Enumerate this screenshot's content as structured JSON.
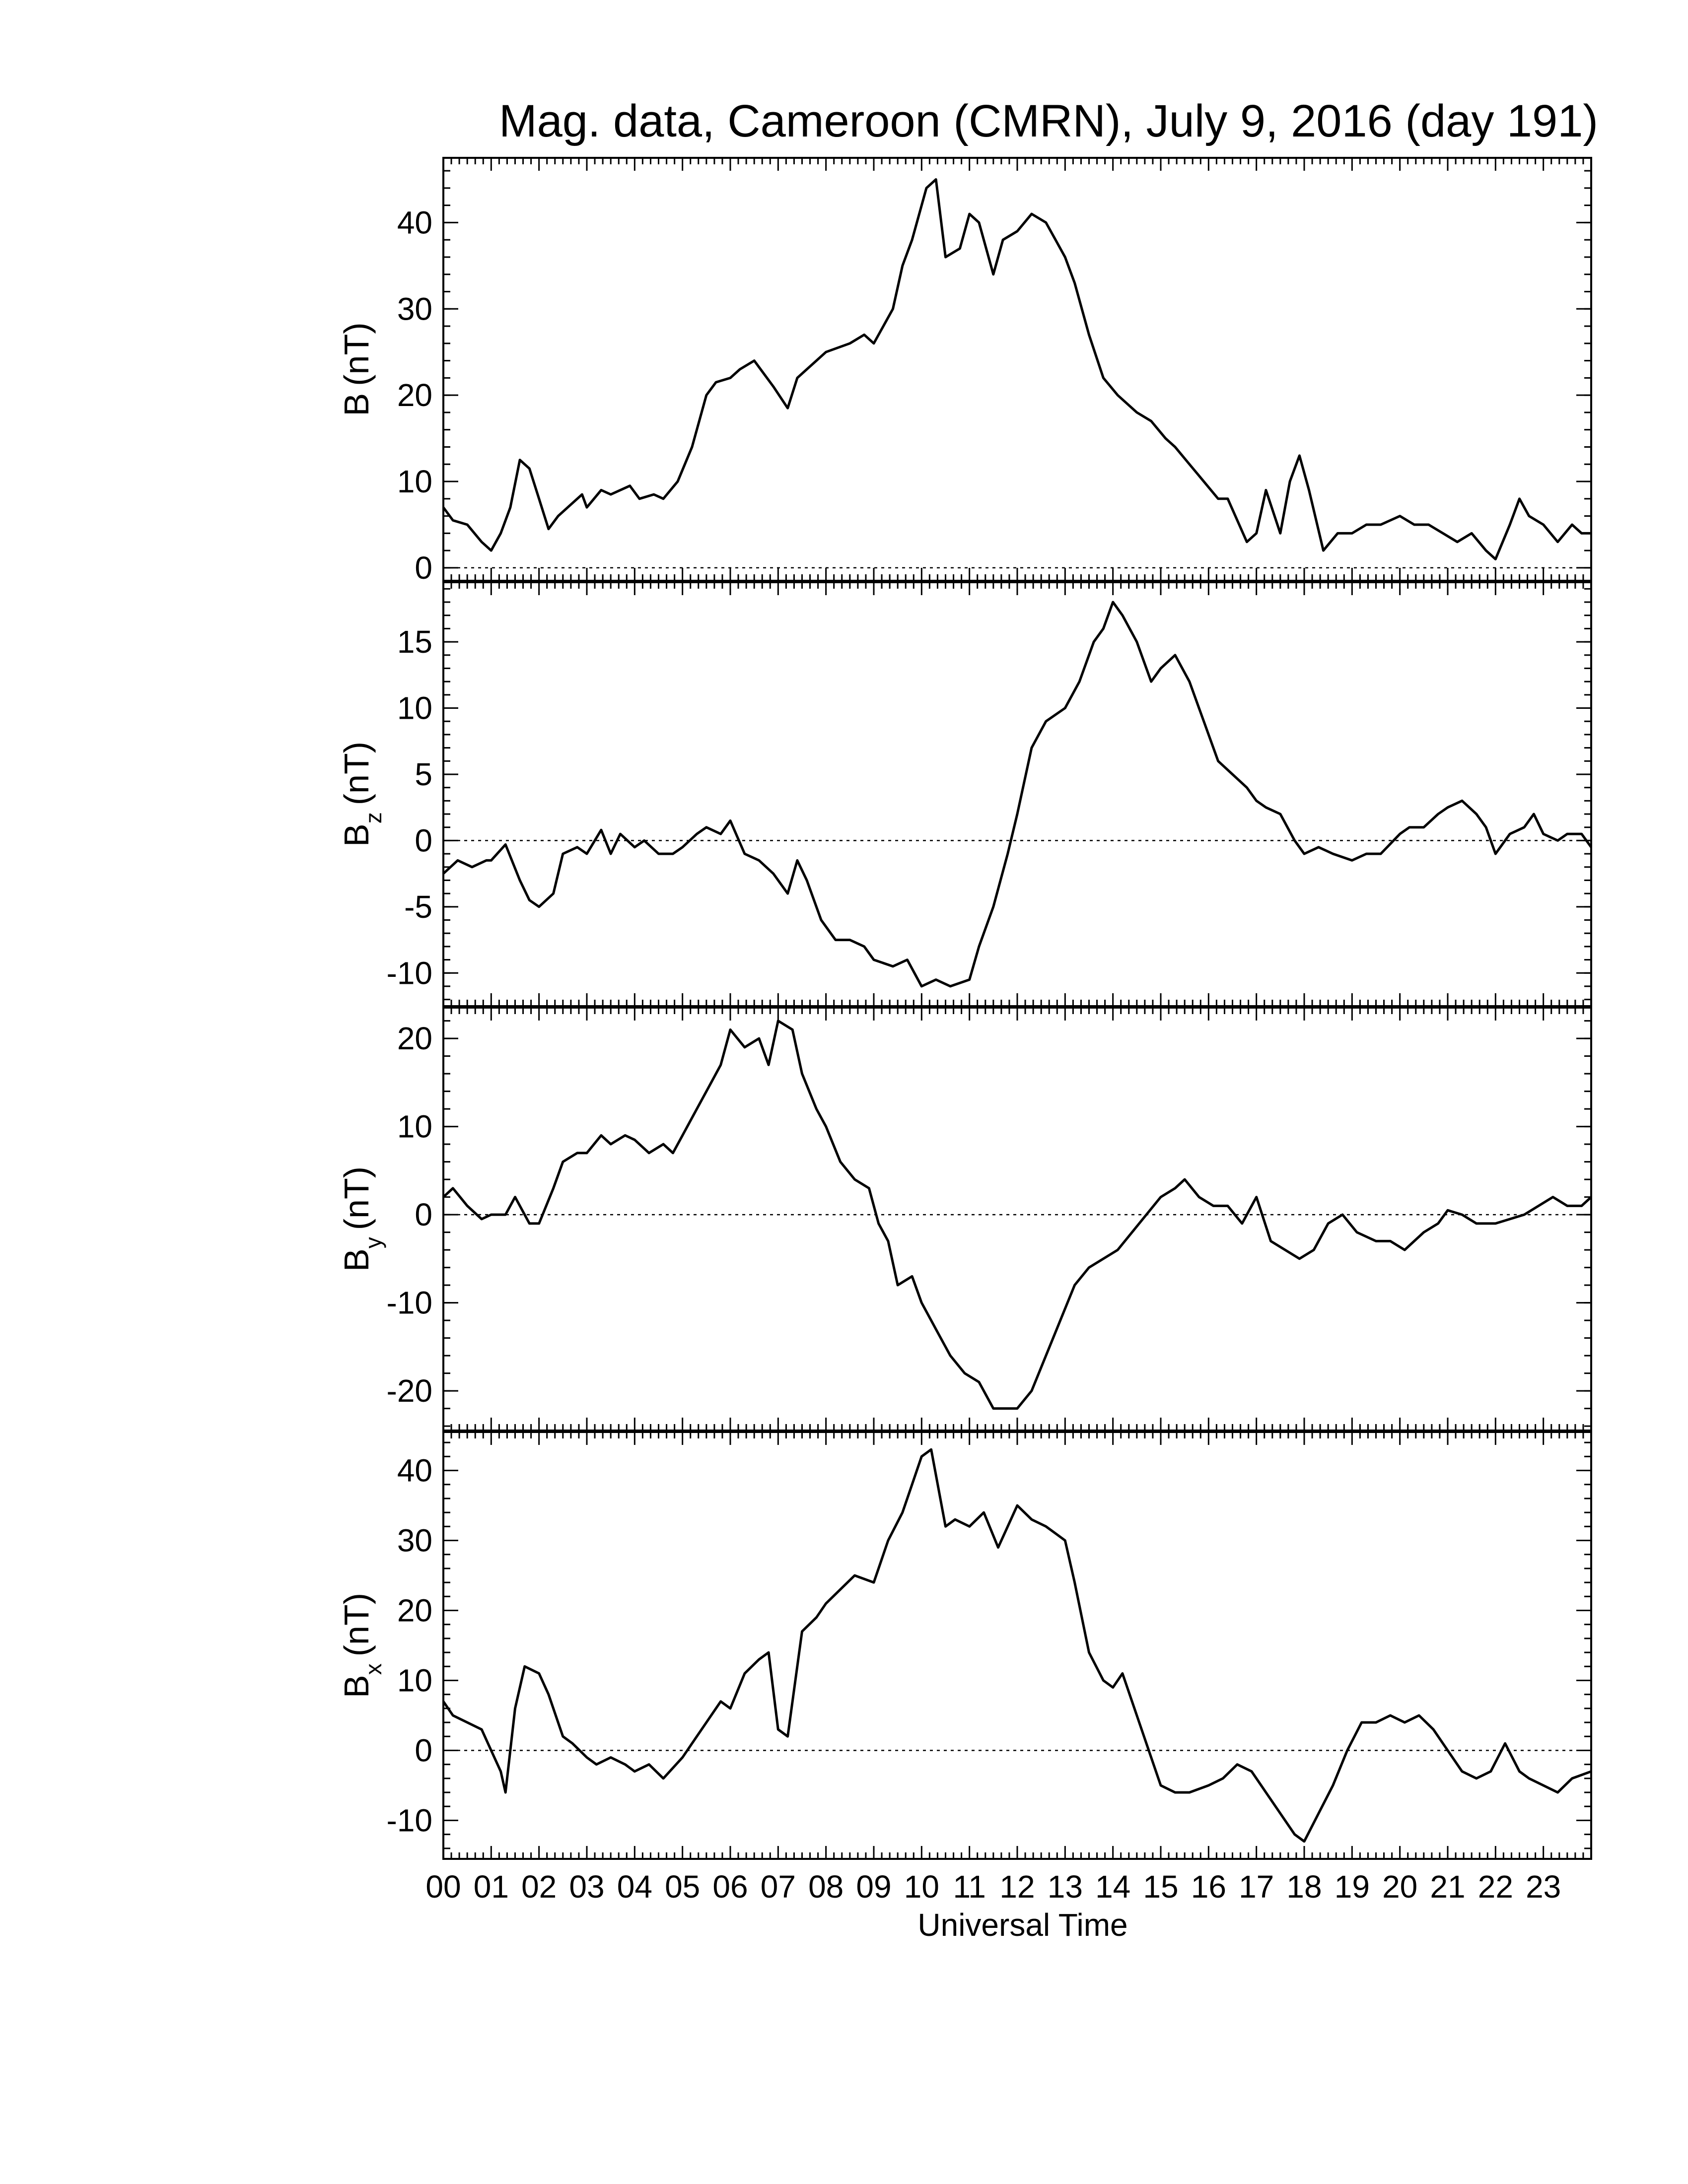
{
  "title": "Mag. data, Cameroon (CMRN), July 9, 2016 (day 191)",
  "xlabel": "Universal Time",
  "x_tick_labels": [
    "00",
    "01",
    "02",
    "03",
    "04",
    "05",
    "06",
    "07",
    "08",
    "09",
    "10",
    "11",
    "12",
    "13",
    "14",
    "15",
    "16",
    "17",
    "18",
    "19",
    "20",
    "21",
    "22",
    "23"
  ],
  "colors": {
    "line": "#000000",
    "background": "#ffffff",
    "zero_line": "#000000"
  },
  "chart_data": [
    {
      "type": "line",
      "ylabel_main": "B",
      "ylabel_sub": "",
      "ylabel_unit": "(nT)",
      "ylim": [
        -1.5,
        47.5
      ],
      "yticks": [
        0,
        10,
        20,
        30,
        40
      ],
      "ytick_labels": [
        "0",
        "10",
        "20",
        "30",
        "40"
      ],
      "xlim": [
        0,
        24
      ],
      "zero_line": true,
      "x": [
        0.0,
        0.2,
        0.5,
        0.8,
        1.0,
        1.2,
        1.4,
        1.6,
        1.8,
        2.0,
        2.2,
        2.4,
        2.6,
        2.9,
        3.0,
        3.3,
        3.5,
        3.9,
        4.1,
        4.4,
        4.6,
        4.9,
        5.2,
        5.5,
        5.7,
        6.0,
        6.2,
        6.5,
        6.9,
        7.2,
        7.4,
        7.6,
        7.8,
        8.0,
        8.5,
        8.8,
        9.0,
        9.4,
        9.6,
        9.8,
        10.1,
        10.3,
        10.5,
        10.8,
        11.0,
        11.2,
        11.5,
        11.7,
        12.0,
        12.3,
        12.6,
        12.8,
        13.0,
        13.2,
        13.5,
        13.8,
        14.1,
        14.5,
        14.8,
        15.1,
        15.3,
        15.6,
        15.9,
        16.2,
        16.4,
        16.8,
        17.0,
        17.2,
        17.5,
        17.7,
        17.9,
        18.1,
        18.4,
        18.7,
        19.0,
        19.3,
        19.6,
        20.0,
        20.3,
        20.6,
        20.9,
        21.2,
        21.5,
        21.8,
        22.0,
        22.3,
        22.5,
        22.7,
        23.0,
        23.3,
        23.6,
        23.8,
        24.0
      ],
      "y": [
        7,
        5.5,
        5,
        3,
        2,
        4,
        7,
        12.5,
        11.5,
        8,
        4.5,
        6,
        7,
        8.5,
        7,
        9,
        8.5,
        9.5,
        8,
        8.5,
        8,
        10,
        14,
        20,
        21.5,
        22,
        23,
        24,
        21,
        18.5,
        22,
        23,
        24,
        25,
        26,
        27,
        26,
        30,
        35,
        38,
        44,
        45,
        36,
        37,
        41,
        40,
        34,
        38,
        39,
        41,
        40,
        38,
        36,
        33,
        27,
        22,
        20,
        18,
        17,
        15,
        14,
        12,
        10,
        8,
        8,
        3,
        4,
        9,
        4,
        10,
        13,
        9,
        2,
        4,
        4,
        5,
        5,
        6,
        5,
        5,
        4,
        3,
        4,
        2,
        1,
        5,
        8,
        6,
        5,
        3,
        5,
        4,
        4
      ]
    },
    {
      "type": "line",
      "ylabel_main": "B",
      "ylabel_sub": "z",
      "ylabel_unit": "(nT)",
      "ylim": [
        -12.5,
        19.5
      ],
      "yticks": [
        -10,
        -5,
        0,
        5,
        10,
        15
      ],
      "ytick_labels": [
        "-10",
        "-5",
        "0",
        "5",
        "10",
        "15"
      ],
      "xlim": [
        0,
        24
      ],
      "zero_line": true,
      "x": [
        0.0,
        0.3,
        0.6,
        0.9,
        1.0,
        1.3,
        1.6,
        1.8,
        2.0,
        2.3,
        2.5,
        2.8,
        3.0,
        3.3,
        3.5,
        3.7,
        4.0,
        4.2,
        4.5,
        4.8,
        5.0,
        5.3,
        5.5,
        5.8,
        6.0,
        6.3,
        6.6,
        6.9,
        7.2,
        7.4,
        7.6,
        7.9,
        8.2,
        8.5,
        8.8,
        9.0,
        9.4,
        9.7,
        10.0,
        10.3,
        10.6,
        11.0,
        11.2,
        11.5,
        11.8,
        12.0,
        12.3,
        12.6,
        13.0,
        13.3,
        13.6,
        13.8,
        14.0,
        14.2,
        14.5,
        14.8,
        15.0,
        15.3,
        15.6,
        15.9,
        16.2,
        16.5,
        16.8,
        17.0,
        17.2,
        17.5,
        17.8,
        18.0,
        18.3,
        18.6,
        19.0,
        19.3,
        19.6,
        20.0,
        20.2,
        20.5,
        20.8,
        21.0,
        21.3,
        21.6,
        21.8,
        22.0,
        22.3,
        22.6,
        22.8,
        23.0,
        23.3,
        23.5,
        23.8,
        24.0
      ],
      "y": [
        -2.5,
        -1.5,
        -2,
        -1.5,
        -1.5,
        -0.3,
        -3,
        -4.5,
        -5,
        -4,
        -1,
        -0.5,
        -1,
        0.8,
        -1,
        0.5,
        -0.5,
        0,
        -1,
        -1,
        -0.5,
        0.5,
        1,
        0.5,
        1.5,
        -1,
        -1.5,
        -2.5,
        -4,
        -1.5,
        -3,
        -6,
        -7.5,
        -7.5,
        -8,
        -9,
        -9.5,
        -9,
        -11,
        -10.5,
        -11,
        -10.5,
        -8,
        -5,
        -1,
        2,
        7,
        9,
        10,
        12,
        15,
        16,
        18,
        17,
        15,
        12,
        13,
        14,
        12,
        9,
        6,
        5,
        4,
        3,
        2.5,
        2,
        0,
        -1,
        -0.5,
        -1,
        -1.5,
        -1,
        -1,
        0.5,
        1,
        1,
        2,
        2.5,
        3,
        2,
        1,
        -1,
        0.5,
        1,
        2,
        0.5,
        0,
        0.5,
        0.5,
        -0.5
      ]
    },
    {
      "type": "line",
      "ylabel_main": "B",
      "ylabel_sub": "y",
      "ylabel_unit": "(nT)",
      "ylim": [
        -24.5,
        23.5
      ],
      "yticks": [
        -20,
        -10,
        0,
        10,
        20
      ],
      "ytick_labels": [
        "-20",
        "-10",
        "0",
        "10",
        "20"
      ],
      "xlim": [
        0,
        24
      ],
      "zero_line": true,
      "x": [
        0.0,
        0.2,
        0.5,
        0.8,
        1.0,
        1.3,
        1.5,
        1.8,
        2.0,
        2.3,
        2.5,
        2.8,
        3.0,
        3.3,
        3.5,
        3.8,
        4.0,
        4.3,
        4.6,
        4.8,
        5.0,
        5.3,
        5.6,
        5.8,
        6.0,
        6.3,
        6.6,
        6.8,
        7.0,
        7.3,
        7.5,
        7.8,
        8.0,
        8.3,
        8.6,
        8.9,
        9.1,
        9.3,
        9.5,
        9.8,
        10.0,
        10.3,
        10.6,
        10.9,
        11.2,
        11.5,
        11.8,
        12.0,
        12.3,
        12.6,
        12.9,
        13.2,
        13.5,
        13.8,
        14.1,
        14.4,
        14.7,
        15.0,
        15.3,
        15.5,
        15.8,
        16.1,
        16.4,
        16.7,
        17.0,
        17.3,
        17.6,
        17.9,
        18.2,
        18.5,
        18.8,
        19.1,
        19.5,
        19.8,
        20.1,
        20.5,
        20.8,
        21.0,
        21.3,
        21.6,
        21.8,
        22.0,
        22.3,
        22.6,
        22.9,
        23.2,
        23.5,
        23.8,
        24.0
      ],
      "y": [
        2,
        3,
        1,
        -0.5,
        0,
        0,
        2,
        -1,
        -1,
        3,
        6,
        7,
        7,
        9,
        8,
        9,
        8.5,
        7,
        8,
        7,
        9,
        12,
        15,
        17,
        21,
        19,
        20,
        17,
        22,
        21,
        16,
        12,
        10,
        6,
        4,
        3,
        -1,
        -3,
        -8,
        -7,
        -10,
        -13,
        -16,
        -18,
        -19,
        -22,
        -22,
        -22,
        -20,
        -16,
        -12,
        -8,
        -6,
        -5,
        -4,
        -2,
        0,
        2,
        3,
        4,
        2,
        1,
        1,
        -1,
        2,
        -3,
        -4,
        -5,
        -4,
        -1,
        0,
        -2,
        -3,
        -3,
        -4,
        -2,
        -1,
        0.5,
        0,
        -1,
        -1,
        -1,
        -0.5,
        0,
        1,
        2,
        1,
        1,
        2
      ]
    },
    {
      "type": "line",
      "ylabel_main": "B",
      "ylabel_sub": "x",
      "ylabel_unit": "(nT)",
      "ylim": [
        -15.5,
        45.5
      ],
      "yticks": [
        -10,
        0,
        10,
        20,
        30,
        40
      ],
      "ytick_labels": [
        "-10",
        "0",
        "10",
        "20",
        "30",
        "40"
      ],
      "xlim": [
        0,
        24
      ],
      "zero_line": true,
      "x": [
        0.0,
        0.2,
        0.5,
        0.8,
        1.0,
        1.2,
        1.3,
        1.5,
        1.7,
        2.0,
        2.2,
        2.5,
        2.7,
        3.0,
        3.2,
        3.5,
        3.8,
        4.0,
        4.3,
        4.6,
        5.0,
        5.2,
        5.5,
        5.8,
        6.0,
        6.3,
        6.6,
        6.8,
        7.0,
        7.2,
        7.5,
        7.8,
        8.0,
        8.3,
        8.6,
        9.0,
        9.3,
        9.6,
        9.8,
        10.0,
        10.2,
        10.5,
        10.7,
        11.0,
        11.3,
        11.6,
        12.0,
        12.3,
        12.6,
        12.8,
        13.0,
        13.2,
        13.5,
        13.8,
        14.0,
        14.2,
        14.5,
        14.8,
        15.0,
        15.3,
        15.6,
        16.0,
        16.3,
        16.6,
        16.9,
        17.2,
        17.5,
        17.8,
        18.0,
        18.3,
        18.6,
        18.9,
        19.2,
        19.5,
        19.8,
        20.1,
        20.4,
        20.7,
        21.0,
        21.3,
        21.6,
        21.9,
        22.2,
        22.5,
        22.7,
        23.0,
        23.3,
        23.6,
        24.0
      ],
      "y": [
        7,
        5,
        4,
        3,
        0,
        -3,
        -6,
        6,
        12,
        11,
        8,
        2,
        1,
        -1,
        -2,
        -1,
        -2,
        -3,
        -2,
        -4,
        -1,
        1,
        4,
        7,
        6,
        11,
        13,
        14,
        3,
        2,
        17,
        19,
        21,
        23,
        25,
        24,
        30,
        34,
        38,
        42,
        43,
        32,
        33,
        32,
        34,
        29,
        35,
        33,
        32,
        31,
        30,
        24,
        14,
        10,
        9,
        11,
        5,
        -1,
        -5,
        -6,
        -6,
        -5,
        -4,
        -2,
        -3,
        -6,
        -9,
        -12,
        -13,
        -9,
        -5,
        0,
        4,
        4,
        5,
        4,
        5,
        3,
        0,
        -3,
        -4,
        -3,
        1,
        -3,
        -4,
        -5,
        -6,
        -4,
        -3
      ]
    }
  ]
}
